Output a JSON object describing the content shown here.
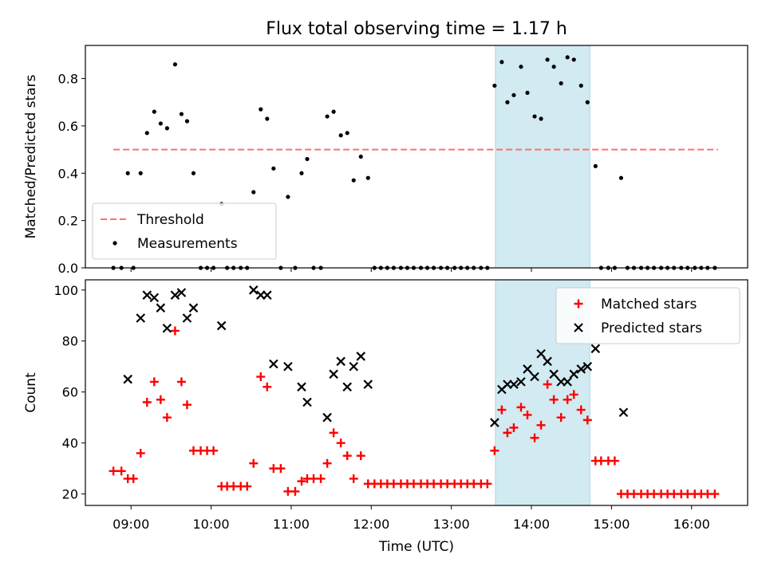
{
  "chart_data": {
    "title": "Flux total observing time = 1.17 h",
    "xlabel": "Time (UTC)",
    "x_unit": "hours UTC",
    "xlim": [
      8.43,
      16.7
    ],
    "xticks": [
      {
        "value": 9,
        "label": "09:00"
      },
      {
        "value": 10,
        "label": "10:00"
      },
      {
        "value": 11,
        "label": "11:00"
      },
      {
        "value": 12,
        "label": "12:00"
      },
      {
        "value": 13,
        "label": "13:00"
      },
      {
        "value": 14,
        "label": "14:00"
      },
      {
        "value": 15,
        "label": "15:00"
      },
      {
        "value": 16,
        "label": "16:00"
      }
    ],
    "highlight_span": {
      "x0": 13.55,
      "x1": 14.73,
      "color": "#add8e6"
    },
    "panels": [
      {
        "type": "scatter",
        "ylabel": "Matched/Predicted stars",
        "ylim": [
          0,
          0.94
        ],
        "yticks": [
          {
            "value": 0,
            "label": "0.0"
          },
          {
            "value": 0.2,
            "label": "0.2"
          },
          {
            "value": 0.4,
            "label": "0.4"
          },
          {
            "value": 0.6,
            "label": "0.6"
          },
          {
            "value": 0.8,
            "label": "0.8"
          }
        ],
        "legend_position": "lower-left",
        "threshold": {
          "name": "Threshold",
          "value": 0.5,
          "x0": 8.78,
          "x1": 16.33,
          "color": "#ff7070"
        },
        "series": [
          {
            "name": "Measurements",
            "marker": "dot",
            "color": "#000000",
            "x": [
              8.78,
              8.88,
              8.96,
              9.03,
              9.12,
              9.2,
              9.29,
              9.37,
              9.45,
              9.55,
              9.63,
              9.7,
              9.78,
              9.87,
              9.95,
              10.03,
              10.13,
              10.2,
              10.28,
              10.37,
              10.45,
              10.53,
              10.62,
              10.7,
              10.78,
              10.87,
              10.96,
              11.05,
              11.13,
              11.2,
              11.28,
              11.37,
              11.45,
              11.53,
              11.62,
              11.7,
              11.78,
              11.87,
              11.96,
              12.04,
              12.12,
              12.2,
              12.28,
              12.37,
              12.45,
              12.53,
              12.62,
              12.7,
              12.78,
              12.87,
              12.95,
              13.04,
              13.12,
              13.2,
              13.28,
              13.37,
              13.45,
              13.54,
              13.63,
              13.7,
              13.78,
              13.87,
              13.95,
              14.04,
              14.12,
              14.2,
              14.28,
              14.37,
              14.45,
              14.53,
              14.62,
              14.7,
              14.8,
              14.87,
              14.96,
              15.04,
              15.12,
              15.2,
              15.28,
              15.37,
              15.45,
              15.53,
              15.62,
              15.7,
              15.78,
              15.87,
              15.95,
              16.04,
              16.12,
              16.2,
              16.29
            ],
            "y": [
              0,
              0,
              0.4,
              0,
              0.4,
              0.57,
              0.66,
              0.61,
              0.59,
              0.86,
              0.65,
              0.62,
              0.4,
              0,
              0,
              0,
              0.27,
              0,
              0,
              0,
              0,
              0.32,
              0.67,
              0.63,
              0.42,
              0,
              0.3,
              0,
              0.4,
              0.46,
              0,
              0,
              0.64,
              0.66,
              0.56,
              0.57,
              0.37,
              0.47,
              0.38,
              0,
              0,
              0,
              0,
              0,
              0,
              0,
              0,
              0,
              0,
              0,
              0,
              0,
              0,
              0,
              0,
              0,
              0,
              0.77,
              0.87,
              0.7,
              0.73,
              0.85,
              0.74,
              0.64,
              0.63,
              0.88,
              0.85,
              0.78,
              0.89,
              0.88,
              0.77,
              0.7,
              0.43,
              0,
              0,
              0,
              0.38,
              0,
              0,
              0,
              0,
              0,
              0,
              0,
              0,
              0,
              0,
              0,
              0,
              0,
              0
            ]
          }
        ]
      },
      {
        "type": "scatter",
        "ylabel": "Count",
        "ylim": [
          15.5,
          104
        ],
        "yticks": [
          {
            "value": 20,
            "label": "20"
          },
          {
            "value": 40,
            "label": "40"
          },
          {
            "value": 60,
            "label": "60"
          },
          {
            "value": 80,
            "label": "80"
          },
          {
            "value": 100,
            "label": "100"
          }
        ],
        "legend_position": "upper-right",
        "series": [
          {
            "name": "Matched stars",
            "marker": "plus",
            "color": "#ff0000",
            "x": [
              8.78,
              8.88,
              8.96,
              9.03,
              9.12,
              9.2,
              9.29,
              9.37,
              9.45,
              9.55,
              9.63,
              9.7,
              9.78,
              9.87,
              9.95,
              10.03,
              10.13,
              10.2,
              10.28,
              10.37,
              10.45,
              10.53,
              10.62,
              10.7,
              10.78,
              10.87,
              10.96,
              11.05,
              11.13,
              11.2,
              11.28,
              11.37,
              11.45,
              11.53,
              11.62,
              11.7,
              11.78,
              11.87,
              11.96,
              12.04,
              12.12,
              12.2,
              12.28,
              12.37,
              12.45,
              12.53,
              12.62,
              12.7,
              12.78,
              12.87,
              12.95,
              13.04,
              13.12,
              13.2,
              13.28,
              13.37,
              13.45,
              13.54,
              13.63,
              13.7,
              13.78,
              13.87,
              13.95,
              14.04,
              14.12,
              14.2,
              14.28,
              14.37,
              14.45,
              14.53,
              14.62,
              14.7,
              14.8,
              14.87,
              14.96,
              15.04,
              15.12,
              15.2,
              15.28,
              15.37,
              15.45,
              15.53,
              15.62,
              15.7,
              15.78,
              15.87,
              15.95,
              16.04,
              16.12,
              16.2,
              16.29
            ],
            "y": [
              29,
              29,
              26,
              26,
              36,
              56,
              64,
              57,
              50,
              84,
              64,
              55,
              37,
              37,
              37,
              37,
              23,
              23,
              23,
              23,
              23,
              32,
              66,
              62,
              30,
              30,
              21,
              21,
              25,
              26,
              26,
              26,
              32,
              44,
              40,
              35,
              26,
              35,
              24,
              24,
              24,
              24,
              24,
              24,
              24,
              24,
              24,
              24,
              24,
              24,
              24,
              24,
              24,
              24,
              24,
              24,
              24,
              37,
              53,
              44,
              46,
              54,
              51,
              42,
              47,
              63,
              57,
              50,
              57,
              59,
              53,
              49,
              33,
              33,
              33,
              33,
              20,
              20,
              20,
              20,
              20,
              20,
              20,
              20,
              20,
              20,
              20,
              20,
              20,
              20,
              20
            ]
          },
          {
            "name": "Predicted stars",
            "marker": "x",
            "color": "#000000",
            "x": [
              8.96,
              9.12,
              9.2,
              9.29,
              9.37,
              9.45,
              9.55,
              9.63,
              9.7,
              9.78,
              10.13,
              10.53,
              10.62,
              10.7,
              10.78,
              10.96,
              11.13,
              11.2,
              11.45,
              11.53,
              11.62,
              11.7,
              11.78,
              11.87,
              11.96,
              13.54,
              13.63,
              13.7,
              13.78,
              13.87,
              13.95,
              14.04,
              14.12,
              14.2,
              14.28,
              14.37,
              14.45,
              14.53,
              14.62,
              14.7,
              14.8,
              15.15
            ],
            "y": [
              65,
              89,
              98,
              97,
              93,
              85,
              98,
              99,
              89,
              93,
              86,
              100,
              98,
              98,
              71,
              70,
              62,
              56,
              50,
              67,
              72,
              62,
              70,
              74,
              63,
              48,
              61,
              63,
              63,
              64,
              69,
              66,
              75,
              72,
              67,
              64,
              64,
              67,
              69,
              70,
              77,
              52
            ]
          }
        ]
      }
    ]
  }
}
